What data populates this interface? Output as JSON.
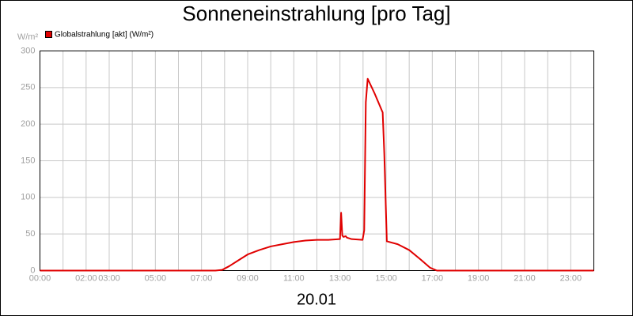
{
  "chart_data": {
    "type": "line",
    "title": "Sonneneinstrahlung [pro Tag]",
    "xlabel": "20.01",
    "ylabel": "W/m²",
    "x": [
      0,
      7.6,
      7.9,
      8.2,
      8.6,
      9.0,
      9.5,
      10.0,
      10.5,
      11.0,
      11.5,
      12.0,
      12.5,
      13.0,
      13.05,
      13.1,
      13.15,
      13.25,
      13.3,
      13.4,
      13.5,
      13.98,
      14.05,
      14.12,
      14.2,
      14.5,
      14.85,
      14.92,
      15.03,
      15.5,
      16.0,
      16.5,
      16.9,
      17.2,
      24
    ],
    "series": [
      {
        "name": "Globalstrahlung [akt] (W/m²)",
        "color": "#e00000",
        "values": [
          0,
          0,
          1,
          6,
          14,
          22,
          28,
          33,
          36,
          39,
          41,
          42,
          42,
          43,
          79,
          48,
          46,
          47,
          45,
          44,
          43,
          42,
          55,
          230,
          262,
          242,
          216,
          160,
          40,
          36,
          28,
          15,
          4,
          0,
          0
        ]
      }
    ],
    "xlim": [
      0,
      24
    ],
    "xticks": [
      {
        "value": 0,
        "label": "00:00"
      },
      {
        "value": 2,
        "label": "02:00"
      },
      {
        "value": 3,
        "label": "03:00"
      },
      {
        "value": 5,
        "label": "05:00"
      },
      {
        "value": 7,
        "label": "07:00"
      },
      {
        "value": 9,
        "label": "09:00"
      },
      {
        "value": 11,
        "label": "11:00"
      },
      {
        "value": 13,
        "label": "13:00"
      },
      {
        "value": 15,
        "label": "15:00"
      },
      {
        "value": 17,
        "label": "17:00"
      },
      {
        "value": 19,
        "label": "19:00"
      },
      {
        "value": 21,
        "label": "21:00"
      },
      {
        "value": 23,
        "label": "23:00"
      }
    ],
    "x_grid": [
      1,
      2,
      3,
      4,
      5,
      6,
      7,
      8,
      9,
      10,
      11,
      12,
      13,
      14,
      15,
      16,
      17,
      18,
      19,
      20,
      21,
      22,
      23
    ],
    "ylim": [
      0,
      300
    ],
    "yticks": [
      0,
      50,
      100,
      150,
      200,
      250,
      300
    ],
    "grid": true
  }
}
